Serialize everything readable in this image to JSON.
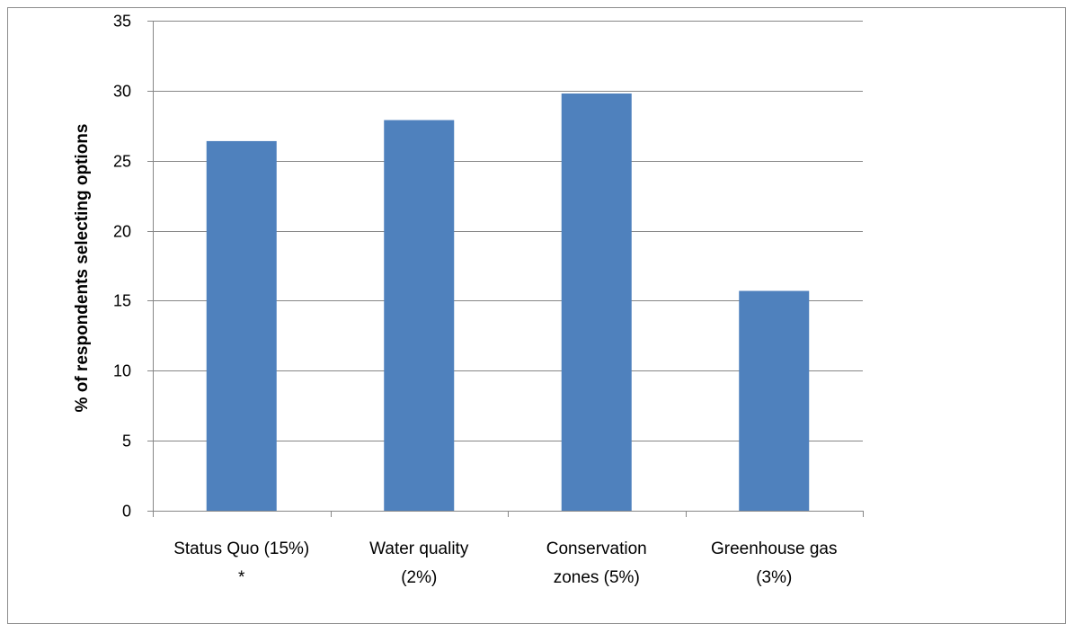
{
  "chart_data": {
    "type": "bar",
    "title": "",
    "xlabel": "",
    "ylabel": "% of respondents selecting options",
    "categories": [
      [
        "Status Quo (15%)",
        "*"
      ],
      [
        "Water quality",
        "(2%)"
      ],
      [
        "Conservation",
        "zones (5%)"
      ],
      [
        "Greenhouse gas",
        "(3%)"
      ]
    ],
    "values": [
      26.4,
      27.9,
      29.8,
      15.7
    ],
    "ylim": [
      0,
      35
    ],
    "yticks": [
      0,
      5,
      10,
      15,
      20,
      25,
      30,
      35
    ],
    "grid": true,
    "legend": "none",
    "bar_color": "#4f81bd",
    "grid_color": "#868686"
  }
}
